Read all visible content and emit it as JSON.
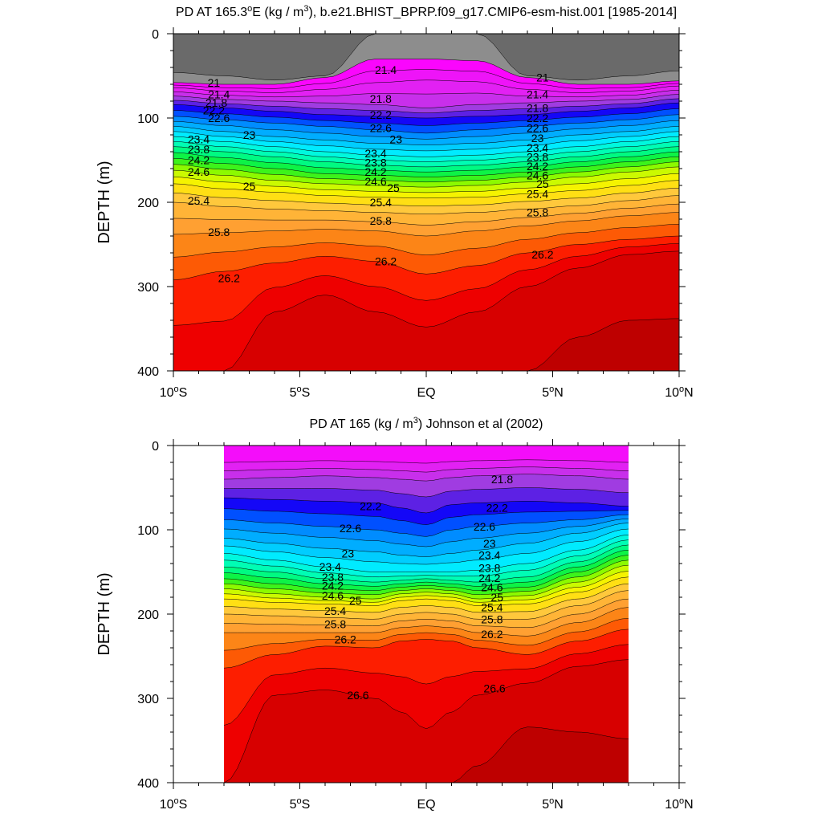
{
  "chart_data": [
    {
      "type": "contour",
      "title_parts": [
        "PD AT 165.3",
        "o",
        "E (kg / m",
        "3",
        "), b.e21.BHIST_BPRP.f09_g17.CMIP6-esm-hist.001 [1985-2014]"
      ],
      "xlabel": "",
      "ylabel": "DEPTH (m)",
      "xlim": [
        -10,
        10
      ],
      "ylim": [
        0,
        400
      ],
      "x_ticks": [
        {
          "value": -10,
          "num": "10",
          "hemi": "S"
        },
        {
          "value": -5,
          "num": "5",
          "hemi": "S"
        },
        {
          "value": 0,
          "num": "EQ",
          "hemi": ""
        },
        {
          "value": 5,
          "num": "5",
          "hemi": "N"
        },
        {
          "value": 10,
          "num": "10",
          "hemi": "N"
        }
      ],
      "y_ticks": [
        0,
        100,
        200,
        300,
        400
      ],
      "data_range": [
        -10,
        10
      ],
      "surface_levels": [
        20.6,
        21.0
      ],
      "contour_interval": 0.2,
      "contour_levels": [
        20.6,
        21.0,
        21.2,
        21.4,
        21.6,
        21.8,
        22.0,
        22.2,
        22.4,
        22.6,
        22.8,
        23.0,
        23.2,
        23.4,
        23.6,
        23.8,
        24.0,
        24.2,
        24.4,
        24.6,
        24.8,
        25.0,
        25.2,
        25.4,
        25.6,
        25.8,
        26.0,
        26.2,
        26.4,
        26.6,
        26.8
      ],
      "contour_depths_at": {
        "x": [
          -10,
          -8,
          -6,
          -4,
          -2,
          0,
          2,
          4,
          6,
          8,
          10
        ],
        "levels": [
          {
            "level": 20.6,
            "depth": [
              46,
              50,
              55,
              50,
              0,
              0,
              0,
              50,
              55,
              50,
              44
            ]
          },
          {
            "level": 21.0,
            "depth": [
              58,
              60,
              60,
              52,
              30,
              30,
              32,
              52,
              60,
              60,
              56
            ]
          },
          {
            "level": 21.4,
            "depth": [
              64,
              68,
              70,
              66,
              58,
              55,
              57,
              66,
              70,
              68,
              62
            ]
          },
          {
            "level": 21.8,
            "depth": [
              74,
              78,
              80,
              82,
              84,
              88,
              84,
              82,
              80,
              78,
              72
            ]
          },
          {
            "level": 22.2,
            "depth": [
              84,
              88,
              92,
              96,
              98,
              100,
              98,
              96,
              92,
              88,
              82
            ]
          },
          {
            "level": 22.6,
            "depth": [
              98,
              102,
              106,
              110,
              114,
              118,
              114,
              110,
              106,
              102,
              96
            ]
          },
          {
            "level": 23.0,
            "depth": [
              110,
              116,
              122,
              126,
              130,
              132,
              130,
              126,
              120,
              116,
              110
            ]
          },
          {
            "level": 23.4,
            "depth": [
              122,
              128,
              134,
              140,
              144,
              146,
              144,
              140,
              134,
              128,
              122
            ]
          },
          {
            "level": 23.8,
            "depth": [
              134,
              140,
              146,
              152,
              156,
              158,
              156,
              152,
              146,
              140,
              134
            ]
          },
          {
            "level": 24.2,
            "depth": [
              148,
              154,
              160,
              166,
              168,
              170,
              168,
              164,
              158,
              152,
              146
            ]
          },
          {
            "level": 24.6,
            "depth": [
              162,
              168,
              174,
              178,
              180,
              182,
              180,
              176,
              170,
              164,
              158
            ]
          },
          {
            "level": 25.0,
            "depth": [
              178,
              184,
              188,
              192,
              194,
              195,
              194,
              190,
              186,
              180,
              174
            ]
          },
          {
            "level": 25.4,
            "depth": [
              200,
              205,
              208,
              210,
              212,
              214,
              212,
              208,
              204,
              198,
              192
            ]
          },
          {
            "level": 25.8,
            "depth": [
              238,
              236,
              234,
              232,
              234,
              240,
              234,
              228,
              222,
              216,
              212
            ]
          },
          {
            "level": 26.2,
            "depth": [
              292,
              282,
              272,
              264,
              270,
              285,
              275,
              260,
              250,
              244,
              240
            ]
          },
          {
            "level": 26.6,
            "depth": [
              400,
              400,
              330,
              310,
              330,
              348,
              330,
              300,
              278,
              262,
              258
            ]
          },
          {
            "level": 26.8,
            "depth": [
              400,
              400,
              400,
              400,
              400,
              400,
              400,
              400,
              360,
              340,
              338
            ]
          }
        ]
      },
      "contour_labels": [
        {
          "text": "21",
          "x": -8.4,
          "depth": 58
        },
        {
          "text": "21.4",
          "x": -8.2,
          "depth": 72
        },
        {
          "text": "21.8",
          "x": -8.3,
          "depth": 82
        },
        {
          "text": "22.2",
          "x": -8.4,
          "depth": 91
        },
        {
          "text": "22.6",
          "x": -8.2,
          "depth": 100
        },
        {
          "text": "23",
          "x": -7.0,
          "depth": 120
        },
        {
          "text": "23.4",
          "x": -9.0,
          "depth": 125
        },
        {
          "text": "23.8",
          "x": -9.0,
          "depth": 137
        },
        {
          "text": "24.2",
          "x": -9.0,
          "depth": 150
        },
        {
          "text": "24.6",
          "x": -9.0,
          "depth": 164
        },
        {
          "text": "25",
          "x": -7.0,
          "depth": 181
        },
        {
          "text": "25.4",
          "x": -9.0,
          "depth": 198
        },
        {
          "text": "25.8",
          "x": -8.2,
          "depth": 235
        },
        {
          "text": "26.2",
          "x": -7.8,
          "depth": 290
        },
        {
          "text": "21.4",
          "x": -1.6,
          "depth": 43
        },
        {
          "text": "21.8",
          "x": -1.8,
          "depth": 77
        },
        {
          "text": "22.2",
          "x": -1.8,
          "depth": 96
        },
        {
          "text": "22.6",
          "x": -1.8,
          "depth": 112
        },
        {
          "text": "23",
          "x": -1.2,
          "depth": 125
        },
        {
          "text": "23.4",
          "x": -2.0,
          "depth": 142
        },
        {
          "text": "23.8",
          "x": -2.0,
          "depth": 153
        },
        {
          "text": "24.2",
          "x": -2.0,
          "depth": 164
        },
        {
          "text": "24.6",
          "x": -2.0,
          "depth": 175
        },
        {
          "text": "25",
          "x": -1.3,
          "depth": 183
        },
        {
          "text": "25.4",
          "x": -1.8,
          "depth": 200
        },
        {
          "text": "25.8",
          "x": -1.8,
          "depth": 222
        },
        {
          "text": "26.2",
          "x": -1.6,
          "depth": 270
        },
        {
          "text": "21",
          "x": 4.6,
          "depth": 52
        },
        {
          "text": "21.4",
          "x": 4.4,
          "depth": 72
        },
        {
          "text": "21.8",
          "x": 4.4,
          "depth": 88
        },
        {
          "text": "22.2",
          "x": 4.4,
          "depth": 100
        },
        {
          "text": "22.6",
          "x": 4.4,
          "depth": 112
        },
        {
          "text": "23",
          "x": 4.4,
          "depth": 124
        },
        {
          "text": "23.4",
          "x": 4.4,
          "depth": 135
        },
        {
          "text": "23.8",
          "x": 4.4,
          "depth": 146
        },
        {
          "text": "24.2",
          "x": 4.4,
          "depth": 157
        },
        {
          "text": "24.6",
          "x": 4.4,
          "depth": 168
        },
        {
          "text": "25",
          "x": 4.6,
          "depth": 178
        },
        {
          "text": "25.4",
          "x": 4.4,
          "depth": 190
        },
        {
          "text": "25.8",
          "x": 4.4,
          "depth": 212
        },
        {
          "text": "26.2",
          "x": 4.6,
          "depth": 262
        }
      ]
    },
    {
      "type": "contour",
      "title_parts": [
        "PD AT 165 (kg / m",
        "3",
        ") Johnson et al (2002)"
      ],
      "xlabel": "",
      "ylabel": "DEPTH (m)",
      "xlim": [
        -10,
        10
      ],
      "ylim": [
        0,
        400
      ],
      "x_ticks": [
        {
          "value": -10,
          "num": "10",
          "hemi": "S"
        },
        {
          "value": -5,
          "num": "5",
          "hemi": "S"
        },
        {
          "value": 0,
          "num": "EQ",
          "hemi": ""
        },
        {
          "value": 5,
          "num": "5",
          "hemi": "N"
        },
        {
          "value": 10,
          "num": "10",
          "hemi": "N"
        }
      ],
      "y_ticks": [
        0,
        100,
        200,
        300,
        400
      ],
      "data_range": [
        -8,
        8
      ],
      "surface_levels": [
        21.0
      ],
      "contour_interval": 0.2,
      "contour_levels": [
        21.0,
        21.4,
        21.6,
        21.8,
        22.0,
        22.2,
        22.4,
        22.6,
        22.8,
        23.0,
        23.2,
        23.4,
        23.6,
        23.8,
        24.0,
        24.2,
        24.4,
        24.6,
        24.8,
        25.0,
        25.2,
        25.4,
        25.6,
        25.8,
        26.0,
        26.2,
        26.4,
        26.6,
        26.8
      ],
      "contour_depths_at": {
        "x": [
          -8,
          -6,
          -4,
          -2,
          -1,
          0,
          1,
          2,
          4,
          6,
          8
        ],
        "levels": [
          {
            "level": 21.0,
            "depth": [
              0,
              0,
              0,
              0,
              0,
              0,
              0,
              0,
              0,
              0,
              0
            ]
          },
          {
            "level": 21.8,
            "depth": [
              40,
              38,
              36,
              38,
              40,
              42,
              38,
              36,
              34,
              36,
              40
            ]
          },
          {
            "level": 22.2,
            "depth": [
              62,
              64,
              66,
              68,
              74,
              80,
              70,
              68,
              66,
              68,
              72
            ]
          },
          {
            "level": 22.6,
            "depth": [
              88,
              92,
              96,
              100,
              104,
              108,
              100,
              96,
              92,
              88,
              82
            ]
          },
          {
            "level": 23.0,
            "depth": [
              110,
              116,
              122,
              126,
              130,
              132,
              128,
              124,
              116,
              104,
              92
            ]
          },
          {
            "level": 23.4,
            "depth": [
              128,
              136,
              144,
              150,
              150,
              150,
              150,
              148,
              140,
              124,
              106
            ]
          },
          {
            "level": 23.8,
            "depth": [
              144,
              150,
              158,
              162,
              160,
              158,
              160,
              162,
              156,
              138,
              118
            ]
          },
          {
            "level": 24.2,
            "depth": [
              158,
              164,
              170,
              172,
              168,
              166,
              168,
              172,
              168,
              150,
              130
            ]
          },
          {
            "level": 24.6,
            "depth": [
              170,
              176,
              180,
              182,
              176,
              174,
              176,
              182,
              178,
              162,
              142
            ]
          },
          {
            "level": 25.0,
            "depth": [
              182,
              186,
              188,
              190,
              184,
              182,
              184,
              190,
              188,
              174,
              156
            ]
          },
          {
            "level": 25.4,
            "depth": [
              200,
              202,
              204,
              206,
              200,
              198,
              200,
              206,
              206,
              190,
              172
            ]
          },
          {
            "level": 25.8,
            "depth": [
              222,
              222,
              222,
              222,
              216,
              214,
              216,
              222,
              226,
              210,
              192
            ]
          },
          {
            "level": 26.2,
            "depth": [
              264,
              248,
              238,
              240,
              232,
              230,
              232,
              240,
              248,
              232,
              218
            ]
          },
          {
            "level": 26.6,
            "depth": [
              400,
              296,
              290,
              300,
              316,
              336,
              316,
              296,
              282,
              262,
              254
            ]
          },
          {
            "level": 26.8,
            "depth": [
              400,
              400,
              400,
              400,
              400,
              400,
              400,
              380,
              334,
              340,
              348
            ]
          }
        ]
      },
      "contour_labels": [
        {
          "text": "21.8",
          "x": 3.0,
          "depth": 40
        },
        {
          "text": "22.2",
          "x": -2.2,
          "depth": 72
        },
        {
          "text": "22.2",
          "x": 2.8,
          "depth": 74
        },
        {
          "text": "22.6",
          "x": -3.0,
          "depth": 98
        },
        {
          "text": "22.6",
          "x": 2.3,
          "depth": 96
        },
        {
          "text": "23",
          "x": -3.1,
          "depth": 128
        },
        {
          "text": "23",
          "x": 2.5,
          "depth": 116
        },
        {
          "text": "23.4",
          "x": -3.8,
          "depth": 144
        },
        {
          "text": "23.4",
          "x": 2.5,
          "depth": 130
        },
        {
          "text": "23.8",
          "x": -3.7,
          "depth": 156
        },
        {
          "text": "23.8",
          "x": 2.5,
          "depth": 145
        },
        {
          "text": "24.2",
          "x": -3.7,
          "depth": 166
        },
        {
          "text": "24.2",
          "x": 2.5,
          "depth": 157
        },
        {
          "text": "24.6",
          "x": -3.7,
          "depth": 178
        },
        {
          "text": "24.6",
          "x": 2.6,
          "depth": 168
        },
        {
          "text": "25",
          "x": -2.8,
          "depth": 184
        },
        {
          "text": "25",
          "x": 2.8,
          "depth": 180
        },
        {
          "text": "25.4",
          "x": -3.6,
          "depth": 196
        },
        {
          "text": "25.4",
          "x": 2.6,
          "depth": 192
        },
        {
          "text": "25.8",
          "x": -3.6,
          "depth": 212
        },
        {
          "text": "25.8",
          "x": 2.6,
          "depth": 206
        },
        {
          "text": "26.2",
          "x": -3.2,
          "depth": 230
        },
        {
          "text": "26.2",
          "x": 2.6,
          "depth": 224
        },
        {
          "text": "26.6",
          "x": -2.7,
          "depth": 296
        },
        {
          "text": "26.6",
          "x": 2.7,
          "depth": 288
        }
      ]
    }
  ]
}
